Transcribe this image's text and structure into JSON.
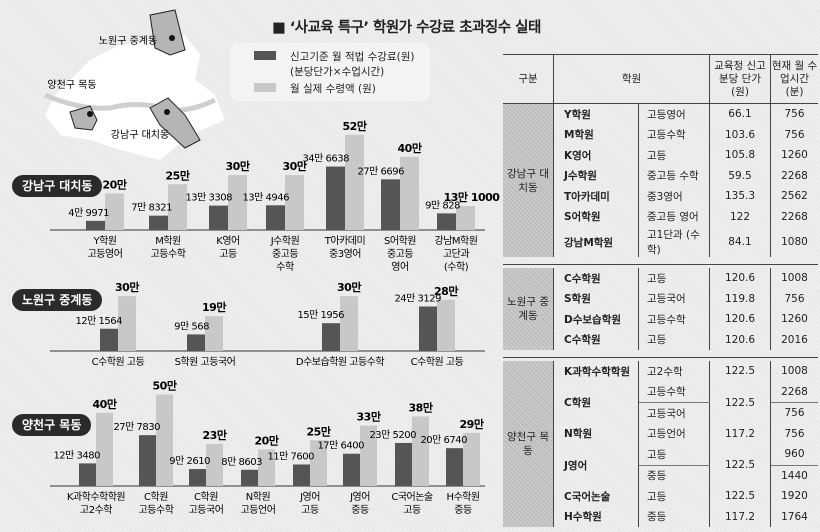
{
  "title": "■ ‘사교육 특구’ 학원가 수강료 초과징수 실태",
  "legend": {
    "legal_fee": "신고기준 월 적법 수강료(원)",
    "legal_fee_note": "(분당단가×수업시간)",
    "actual_fee": "월 실제 수령액 (원)"
  },
  "map": {
    "labels": [
      "노원구 중계동",
      "양천구 목동",
      "강남구 대치동"
    ],
    "colors": {
      "district": "#b5b5b5",
      "city": "#ffffff",
      "river": "#cfcfcf"
    }
  },
  "colors": {
    "legal": "#555555",
    "actual": "#c8c8c8",
    "badge": "#2a2a2a"
  },
  "chart_data": [
    {
      "type": "bar",
      "title": "강남구 대치동",
      "categories": [
        [
          "Y학원",
          "고등영어"
        ],
        [
          "M학원",
          "고등수학"
        ],
        [
          "K영어",
          "고등"
        ],
        [
          "J수학원",
          "중고등",
          "수학"
        ],
        [
          "T아카데미",
          "중3영어"
        ],
        [
          "S어학원",
          "중고등",
          "영어"
        ],
        [
          "강남M학원",
          "고단과",
          "(수학)"
        ]
      ],
      "series": [
        {
          "name": "신고기준 월 적법 수강료(원)",
          "values": [
            49971,
            78321,
            133308,
            134946,
            346638,
            276696,
            90828
          ],
          "labels": [
            "4만 9971",
            "7만 8321",
            "13만 3308",
            "13만 4946",
            "34만 6638",
            "27만 6696",
            "9만 828"
          ]
        },
        {
          "name": "월 실제 수령액 (원)",
          "values": [
            200000,
            250000,
            300000,
            300000,
            520000,
            400000,
            131000
          ],
          "labels": [
            "20만",
            "25만",
            "30만",
            "30만",
            "52만",
            "40만",
            "13만 1000"
          ]
        }
      ]
    },
    {
      "type": "bar",
      "title": "노원구 중계동",
      "categories": [
        [
          "C수학원 고등"
        ],
        [
          "S학원 고등국어"
        ],
        [
          "D수보습학원 고등수학"
        ],
        [
          "C수학원 고등"
        ]
      ],
      "series": [
        {
          "name": "신고기준 월 적법 수강료(원)",
          "values": [
            121564,
            90568,
            151956,
            243129
          ],
          "labels": [
            "12만 1564",
            "9만 568",
            "15만 1956",
            "24만 3129"
          ]
        },
        {
          "name": "월 실제 수령액 (원)",
          "values": [
            300000,
            190000,
            300000,
            280000
          ],
          "labels": [
            "30만",
            "19만",
            "30만",
            "28만"
          ]
        }
      ]
    },
    {
      "type": "bar",
      "title": "양천구 목동",
      "categories": [
        [
          "K과학수학학원",
          "고2수학"
        ],
        [
          "C학원",
          "고등수학"
        ],
        [
          "C학원",
          "고등국어"
        ],
        [
          "N학원",
          "고등언어"
        ],
        [
          "J영어",
          "고등"
        ],
        [
          "J영어",
          "중등"
        ],
        [
          "C국어논술",
          "고등"
        ],
        [
          "H수학원",
          "중등"
        ]
      ],
      "series": [
        {
          "name": "신고기준 월 적법 수강료(원)",
          "values": [
            123480,
            277830,
            92610,
            88603,
            117600,
            176400,
            235200,
            206740
          ],
          "labels": [
            "12만 3480",
            "27만 7830",
            "9만 2610",
            "8만 8603",
            "11만 7600",
            "17만 6400",
            "23만 5200",
            "20만 6740"
          ]
        },
        {
          "name": "월 실제 수령액 (원)",
          "values": [
            400000,
            500000,
            230000,
            200000,
            250000,
            330000,
            380000,
            290000
          ],
          "labels": [
            "40만",
            "50만",
            "23만",
            "20만",
            "25만",
            "33만",
            "38만",
            "29만"
          ]
        }
      ]
    }
  ],
  "table": {
    "headers": {
      "group": "구분",
      "academy": "학원",
      "price": "교육청 신고 분당 단가 (원)",
      "minutes": "현재 월 수업시간 (분)"
    },
    "groups": [
      {
        "name": "강남구 대치동",
        "rows": [
          {
            "name": "Y학원",
            "price": "66.1",
            "items": [
              {
                "subject": "고등영어",
                "minutes": "756"
              }
            ]
          },
          {
            "name": "M학원",
            "price": "103.6",
            "items": [
              {
                "subject": "고등수학",
                "minutes": "756"
              }
            ]
          },
          {
            "name": "K영어",
            "price": "105.8",
            "items": [
              {
                "subject": "고등",
                "minutes": "1260"
              }
            ]
          },
          {
            "name": "J수학원",
            "price": "59.5",
            "items": [
              {
                "subject": "중고등 수학",
                "minutes": "2268"
              }
            ]
          },
          {
            "name": "T아카데미",
            "price": "135.3",
            "items": [
              {
                "subject": "중3영어",
                "minutes": "2562"
              }
            ]
          },
          {
            "name": "S어학원",
            "price": "122",
            "items": [
              {
                "subject": "중고등 영어",
                "minutes": "2268"
              }
            ]
          },
          {
            "name": "강남M학원",
            "price": "84.1",
            "items": [
              {
                "subject": "고1단과 (수학)",
                "minutes": "1080"
              }
            ]
          }
        ]
      },
      {
        "name": "노원구 중계동",
        "rows": [
          {
            "name": "C수학원",
            "price": "120.6",
            "items": [
              {
                "subject": "고등",
                "minutes": "1008"
              }
            ]
          },
          {
            "name": "S학원",
            "price": "119.8",
            "items": [
              {
                "subject": "고등국어",
                "minutes": "756"
              }
            ]
          },
          {
            "name": "D수보습학원",
            "price": "120.6",
            "items": [
              {
                "subject": "고등수학",
                "minutes": "1260"
              }
            ]
          },
          {
            "name": "C수학원",
            "price": "120.6",
            "items": [
              {
                "subject": "고등",
                "minutes": "2016"
              }
            ]
          }
        ]
      },
      {
        "name": "양천구 목동",
        "rows": [
          {
            "name": "K과학수학학원",
            "price": "122.5",
            "items": [
              {
                "subject": "고2수학",
                "minutes": "1008"
              }
            ]
          },
          {
            "name": "C학원",
            "price": "122.5",
            "items": [
              {
                "subject": "고등수학",
                "minutes": "2268"
              },
              {
                "subject": "고등국어",
                "minutes": "756"
              }
            ]
          },
          {
            "name": "N학원",
            "price": "117.2",
            "items": [
              {
                "subject": "고등언어",
                "minutes": "756"
              }
            ]
          },
          {
            "name": "J영어",
            "price": "122.5",
            "items": [
              {
                "subject": "고등",
                "minutes": "960"
              },
              {
                "subject": "중등",
                "minutes": "1440"
              }
            ]
          },
          {
            "name": "C국어논술",
            "price": "122.5",
            "items": [
              {
                "subject": "고등",
                "minutes": "1920"
              }
            ]
          },
          {
            "name": "H수학원",
            "price": "117.2",
            "items": [
              {
                "subject": "중등",
                "minutes": "1764"
              }
            ]
          }
        ]
      }
    ]
  }
}
